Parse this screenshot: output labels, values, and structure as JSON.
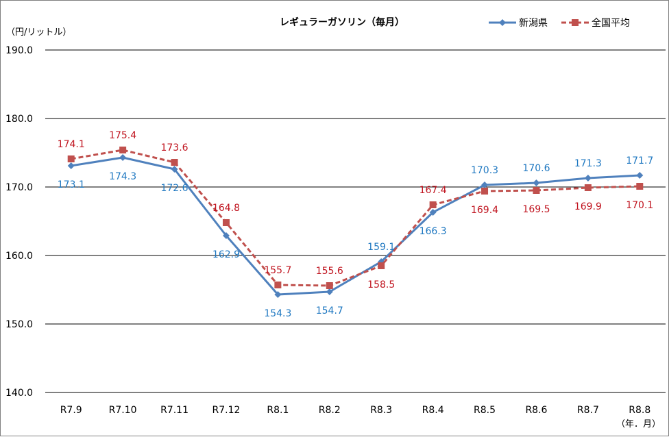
{
  "chart_data": {
    "type": "line",
    "title": "レギュラーガソリン（毎月）",
    "ylabel": "（円/リットル）",
    "xlabel": "（年．月）",
    "categories": [
      "R7.9",
      "R7.10",
      "R7.11",
      "R7.12",
      "R8.1",
      "R8.2",
      "R8.3",
      "R8.4",
      "R8.5",
      "R8.6",
      "R8.7",
      "R8.8"
    ],
    "ylim": [
      140,
      190
    ],
    "yticks": [
      "140.0",
      "150.0",
      "160.0",
      "170.0",
      "180.0",
      "190.0"
    ],
    "grid": true,
    "legend_position": "top-right",
    "series": [
      {
        "name": "新潟県",
        "color": "#4f81bd",
        "label_color": "#1f78c1",
        "marker": "diamond",
        "line": "solid",
        "values": [
          173.1,
          174.3,
          172.6,
          162.9,
          154.3,
          154.7,
          159.1,
          166.3,
          170.3,
          170.6,
          171.3,
          171.7
        ],
        "labels": [
          "173.1",
          "174.3",
          "172.6",
          "162.9",
          "154.3",
          "154.7",
          "159.1",
          "166.3",
          "170.3",
          "170.6",
          "171.3",
          "171.7"
        ]
      },
      {
        "name": "全国平均",
        "color": "#c0504d",
        "label_color": "#c0141f",
        "marker": "square",
        "line": "dashed",
        "values": [
          174.1,
          175.4,
          173.6,
          164.8,
          155.7,
          155.6,
          158.5,
          167.4,
          169.4,
          169.5,
          169.9,
          170.1
        ],
        "labels": [
          "174.1",
          "175.4",
          "173.6",
          "164.8",
          "155.7",
          "155.6",
          "158.5",
          "167.4",
          "169.4",
          "169.5",
          "169.9",
          "170.1"
        ]
      }
    ]
  }
}
